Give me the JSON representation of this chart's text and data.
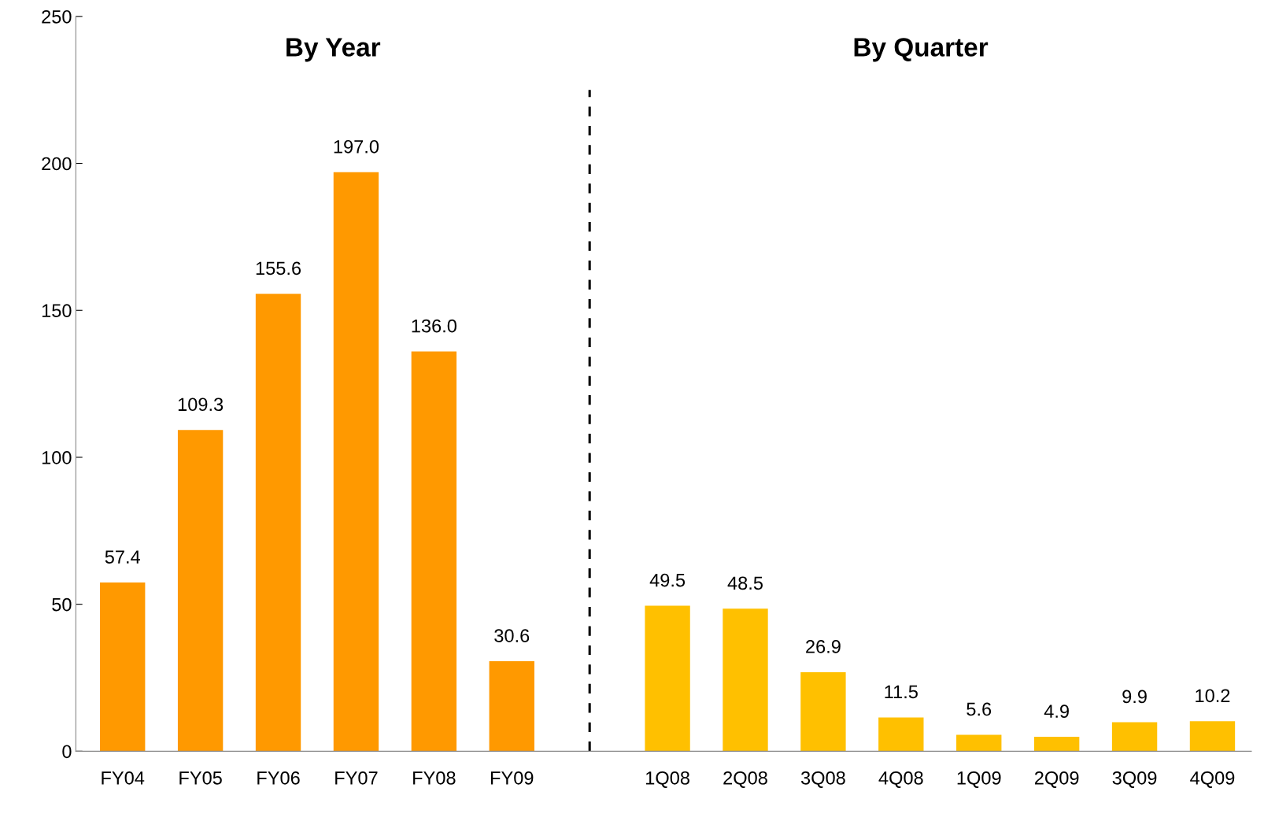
{
  "chart_data": {
    "type": "bar",
    "categories": [
      "FY04",
      "FY05",
      "FY06",
      "FY07",
      "FY08",
      "FY09",
      null,
      "1Q08",
      "2Q08",
      "3Q08",
      "4Q08",
      "1Q09",
      "2Q09",
      "3Q09",
      "4Q09"
    ],
    "values": [
      57.4,
      109.3,
      155.6,
      197.0,
      136.0,
      30.6,
      null,
      49.5,
      48.5,
      26.9,
      11.5,
      5.6,
      4.9,
      9.9,
      10.2
    ],
    "value_labels": [
      "57.4",
      "109.3",
      "155.6",
      "197.0",
      "136.0",
      "30.6",
      null,
      "49.5",
      "48.5",
      "26.9",
      "11.5",
      "5.6",
      "4.9",
      "9.9",
      "10.2"
    ],
    "colors": [
      "#ff9900",
      "#ff9900",
      "#ff9900",
      "#ff9900",
      "#ff9900",
      "#ff9900",
      null,
      "#ffc000",
      "#ffc000",
      "#ffc000",
      "#ffc000",
      "#ffc000",
      "#ffc000",
      "#ffc000",
      "#ffc000"
    ],
    "ylim": [
      0,
      250
    ],
    "yticks": [
      0,
      50,
      100,
      150,
      200,
      250
    ],
    "annotations": [
      "By Year",
      "By Quarter"
    ]
  }
}
